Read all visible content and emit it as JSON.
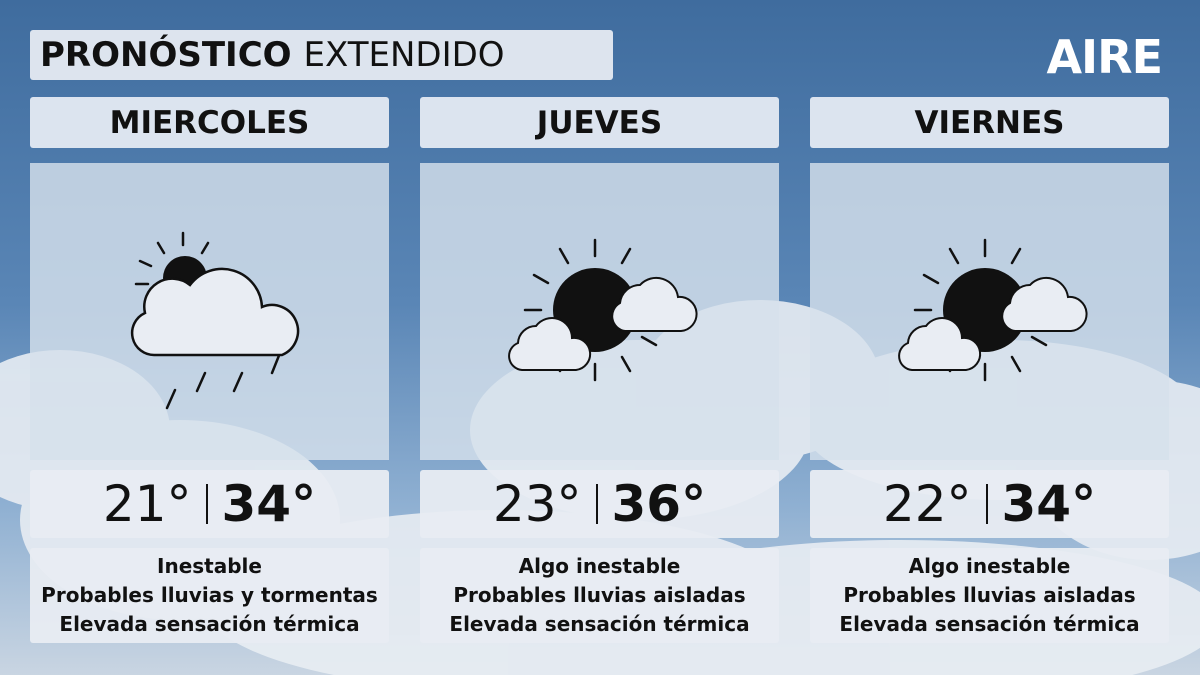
{
  "header": {
    "title_bold": "PRONÓSTICO",
    "title_rest": "EXTENDIDO",
    "brand": "AIRE"
  },
  "days": [
    {
      "name": "MIERCOLES",
      "min": "21°",
      "max": "34°",
      "lines": [
        "Inestable",
        "Probables lluvias y tormentas",
        "Elevada sensación térmica"
      ]
    },
    {
      "name": "JUEVES",
      "min": "23°",
      "max": "36°",
      "lines": [
        "Algo inestable",
        "Probables lluvias aisladas",
        "Elevada sensación térmica"
      ]
    },
    {
      "name": "VIERNES",
      "min": "22°",
      "max": "34°",
      "lines": [
        "Algo inestable",
        "Probables lluvias aisladas",
        "Elevada sensación térmica"
      ]
    }
  ]
}
